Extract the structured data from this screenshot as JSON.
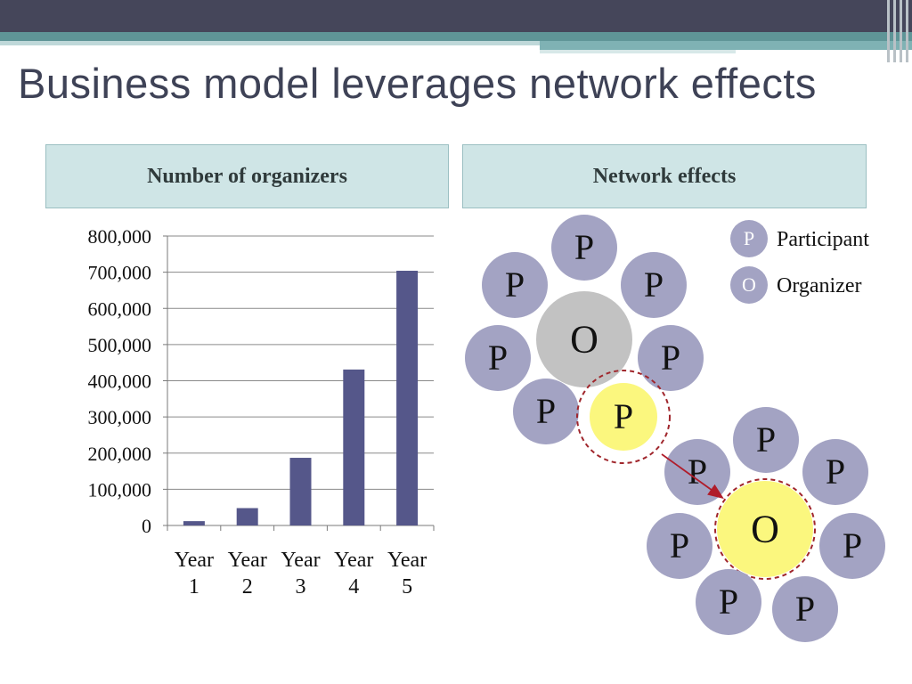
{
  "slide": {
    "title": "Business model leverages network effects",
    "left_header": "Number of organizers",
    "right_header": "Network effects"
  },
  "chart_data": {
    "type": "bar",
    "title": "Number of organizers",
    "categories": [
      [
        "Year",
        "1"
      ],
      [
        "Year",
        "2"
      ],
      [
        "Year",
        "3"
      ],
      [
        "Year",
        "4"
      ],
      [
        "Year",
        "5"
      ]
    ],
    "values": [
      12000,
      48000,
      187000,
      431000,
      704000
    ],
    "ylim": [
      0,
      800000
    ],
    "yticks": [
      "0",
      "100,000",
      "200,000",
      "300,000",
      "400,000",
      "500,000",
      "600,000",
      "700,000",
      "800,000"
    ],
    "grid": true,
    "bar_color": "#55578a",
    "xlabel": "",
    "ylabel": ""
  },
  "network": {
    "participant_letter": "P",
    "organizer_letter": "O",
    "legend": [
      {
        "letter": "P",
        "label": "Participant"
      },
      {
        "letter": "O",
        "label": "Organizer"
      }
    ],
    "colors": {
      "participant": "#a3a3c3",
      "organizer_gray": "#c2c2c2",
      "highlight": "#fbf77e",
      "dashed_ring": "#a0262c",
      "arrow": "#b01c2a"
    }
  }
}
